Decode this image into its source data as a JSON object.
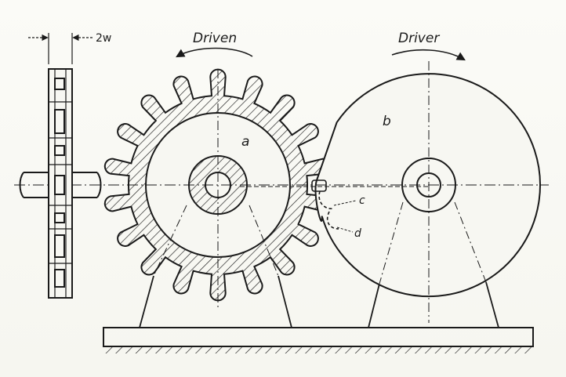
{
  "figure": {
    "labels": {
      "driven": "Driven",
      "driver": "Driver",
      "dimension": "2w",
      "a": "a",
      "b": "b",
      "c": "c",
      "d": "d"
    },
    "driven_gear": {
      "teeth": 18
    },
    "colors": {
      "ink": "#1a1a1a",
      "paper": "#f7f7f2"
    }
  }
}
